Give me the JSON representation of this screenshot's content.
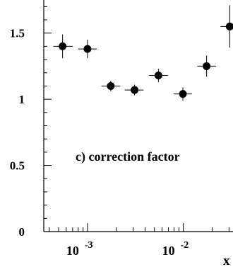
{
  "chart_data": {
    "type": "scatter",
    "title": "",
    "annotation": "c) correction factor",
    "xlabel": "x",
    "ylabel": "",
    "x_scale": "log",
    "xlim": [
      0.00035,
      0.033
    ],
    "ylim": [
      0,
      1.75
    ],
    "grid": false,
    "yticks": [
      0,
      0.5,
      1,
      1.5
    ],
    "ytick_labels": [
      "0",
      "0.5",
      "1",
      "1.5"
    ],
    "xticks": [
      0.001,
      0.01
    ],
    "xtick_labels": [
      {
        "base": "10",
        "exp": "-3"
      },
      {
        "base": "10",
        "exp": "-2"
      }
    ],
    "points": [
      {
        "x": 0.00055,
        "y": 1.4,
        "yerr": 0.09,
        "xlo": 0.00044,
        "xhi": 0.0007
      },
      {
        "x": 0.001,
        "y": 1.38,
        "yerr": 0.07,
        "xlo": 0.0008,
        "xhi": 0.00125
      },
      {
        "x": 0.00175,
        "y": 1.1,
        "yerr": 0.04,
        "xlo": 0.0014,
        "xhi": 0.0022
      },
      {
        "x": 0.0031,
        "y": 1.07,
        "yerr": 0.04,
        "xlo": 0.00245,
        "xhi": 0.00385
      },
      {
        "x": 0.0055,
        "y": 1.18,
        "yerr": 0.05,
        "xlo": 0.0044,
        "xhi": 0.0069
      },
      {
        "x": 0.0099,
        "y": 1.04,
        "yerr": 0.05,
        "xlo": 0.0079,
        "xhi": 0.0123
      },
      {
        "x": 0.0175,
        "y": 1.25,
        "yerr": 0.08,
        "xlo": 0.014,
        "xhi": 0.022
      },
      {
        "x": 0.0305,
        "y": 1.55,
        "yerr": 0.16,
        "xlo": 0.0245,
        "xhi": 0.033
      }
    ]
  }
}
